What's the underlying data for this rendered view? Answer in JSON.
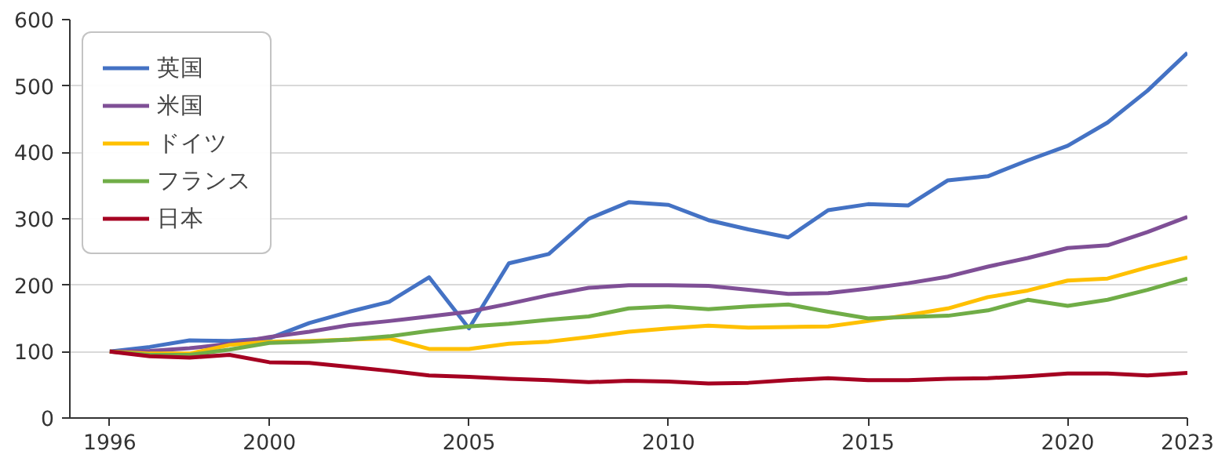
{
  "chart_data": {
    "type": "line",
    "x": [
      1996,
      1997,
      1998,
      1999,
      2000,
      2001,
      2002,
      2003,
      2004,
      2005,
      2006,
      2007,
      2008,
      2009,
      2010,
      2011,
      2012,
      2013,
      2014,
      2015,
      2016,
      2017,
      2018,
      2019,
      2020,
      2021,
      2022,
      2023
    ],
    "series": [
      {
        "name": "英国",
        "color": "#4472c4",
        "values": [
          100,
          107,
          117,
          116,
          120,
          143,
          160,
          175,
          212,
          135,
          233,
          247,
          300,
          325,
          321,
          298,
          284,
          272,
          313,
          322,
          320,
          358,
          364,
          388,
          410,
          445,
          493,
          550
        ]
      },
      {
        "name": "米国",
        "color": "#7f4f96",
        "values": [
          100,
          101,
          105,
          112,
          122,
          130,
          140,
          146,
          153,
          160,
          172,
          185,
          196,
          200,
          200,
          199,
          193,
          187,
          188,
          195,
          203,
          213,
          228,
          241,
          256,
          260,
          280,
          303
        ]
      },
      {
        "name": "ドイツ",
        "color": "#ffc000",
        "values": [
          100,
          97,
          97,
          110,
          115,
          116,
          118,
          120,
          104,
          104,
          112,
          115,
          122,
          130,
          135,
          139,
          136,
          137,
          138,
          146,
          155,
          165,
          182,
          192,
          207,
          210,
          227,
          242
        ]
      },
      {
        "name": "フランス",
        "color": "#70ad47",
        "values": [
          100,
          95,
          95,
          103,
          113,
          115,
          118,
          123,
          131,
          138,
          142,
          148,
          153,
          165,
          168,
          164,
          168,
          171,
          160,
          150,
          152,
          154,
          162,
          178,
          169,
          178,
          193,
          210
        ]
      },
      {
        "name": "日本",
        "color": "#a50021",
        "values": [
          100,
          93,
          91,
          95,
          84,
          83,
          77,
          71,
          64,
          62,
          59,
          57,
          54,
          56,
          55,
          52,
          53,
          57,
          60,
          57,
          57,
          59,
          60,
          63,
          67,
          67,
          64,
          68
        ]
      }
    ],
    "xlim": [
      1995,
      2023
    ],
    "xticks": [
      1996,
      2000,
      2005,
      2010,
      2015,
      2020,
      2023
    ],
    "ylim": [
      0,
      600
    ],
    "yticks": [
      0,
      100,
      200,
      300,
      400,
      500,
      600
    ],
    "grid": "y",
    "legend": "top left",
    "marker": "none",
    "line_style": "solid"
  }
}
